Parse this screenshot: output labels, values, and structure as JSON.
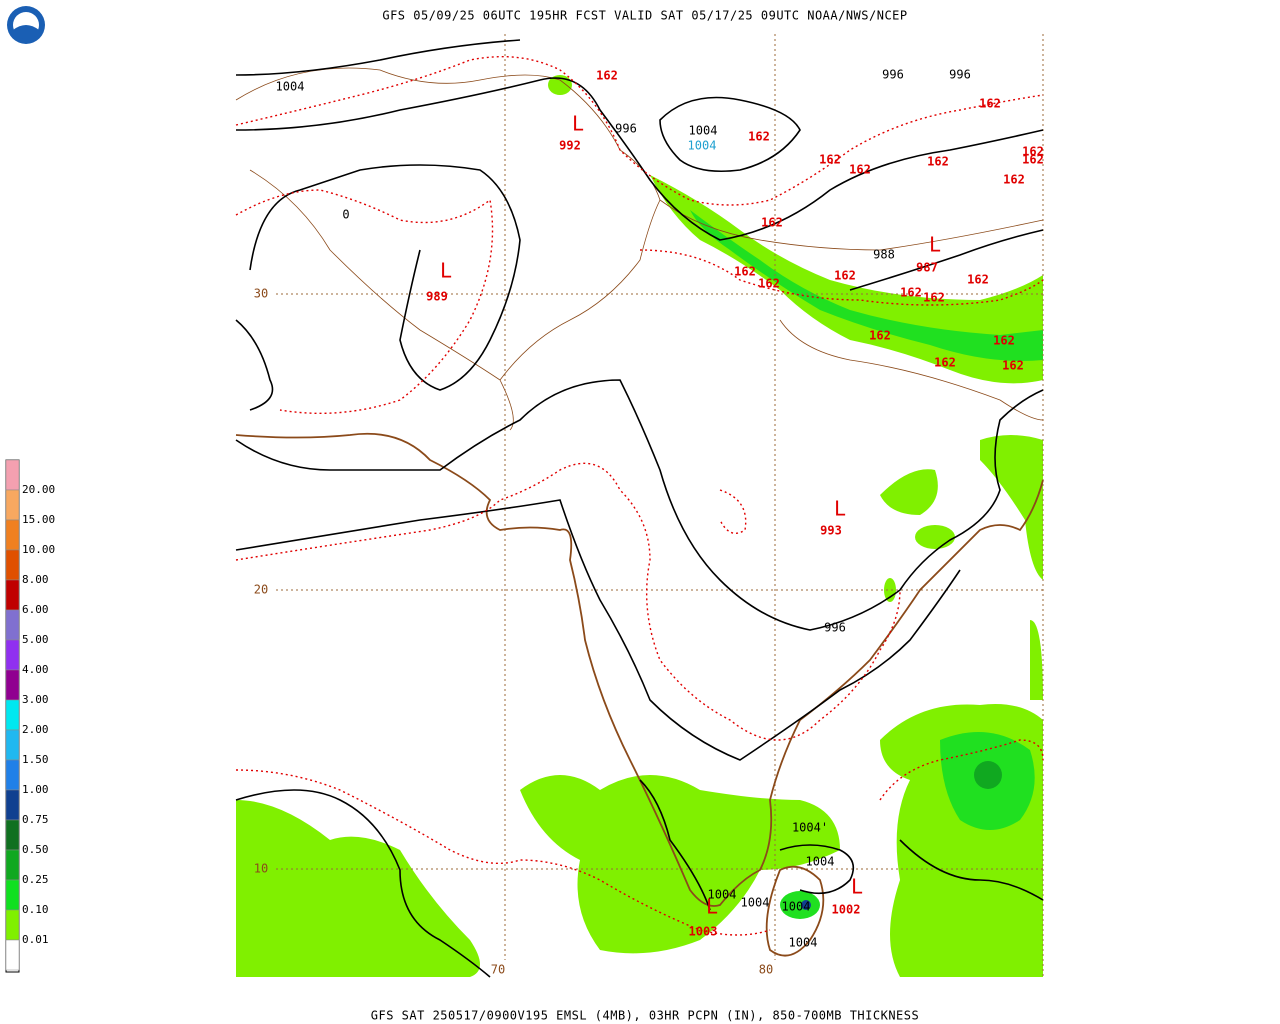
{
  "header": {
    "title": "GFS 05/09/25 06UTC 195HR FCST VALID SAT 05/17/25 09UTC NOAA/NWS/NCEP"
  },
  "footer": {
    "caption": "GFS SAT 250517/0900V195 EMSL (4MB), 03HR PCPN (IN), 850-700MB THICKNESS"
  },
  "legend": {
    "labels": [
      "20.00",
      "15.00",
      "10.00",
      "8.00",
      "6.00",
      "5.00",
      "4.00",
      "3.00",
      "2.00",
      "1.50",
      "1.00",
      "0.75",
      "0.50",
      "0.25",
      "0.10",
      "0.01"
    ],
    "colors": [
      "#f4a0b0",
      "#f8a860",
      "#f08020",
      "#e05000",
      "#c00000",
      "#8070d0",
      "#9030f0",
      "#900090",
      "#00e8f0",
      "#20b8f0",
      "#2080e8",
      "#104090",
      "#107020",
      "#10a820",
      "#10e020",
      "#80f000",
      "#ffffff"
    ]
  },
  "map": {
    "lat_labels": [
      "30",
      "20",
      "10"
    ],
    "lon_labels": [
      "70",
      "80"
    ],
    "pressure_labels": [
      "1004",
      "996",
      "996",
      "996",
      "1004",
      "988",
      "996",
      "1004'",
      "1004",
      "1004",
      "1004",
      "1004",
      "1004",
      "0"
    ],
    "cyan_labels": [
      "1004"
    ],
    "thickness_labels": [
      "162",
      "162",
      "162",
      "162",
      "162",
      "162",
      "162",
      "162",
      "162",
      "162",
      "162",
      "162",
      "162",
      "162",
      "162",
      "162",
      "162",
      "162",
      "162",
      "162"
    ],
    "lows": [
      {
        "symbol": "L",
        "pressure": "992"
      },
      {
        "symbol": "L",
        "pressure": "989"
      },
      {
        "symbol": "L",
        "pressure": "987"
      },
      {
        "symbol": "L",
        "pressure": "993"
      },
      {
        "symbol": "L",
        "pressure": "1003"
      },
      {
        "symbol": "L",
        "pressure": "1002"
      }
    ]
  }
}
